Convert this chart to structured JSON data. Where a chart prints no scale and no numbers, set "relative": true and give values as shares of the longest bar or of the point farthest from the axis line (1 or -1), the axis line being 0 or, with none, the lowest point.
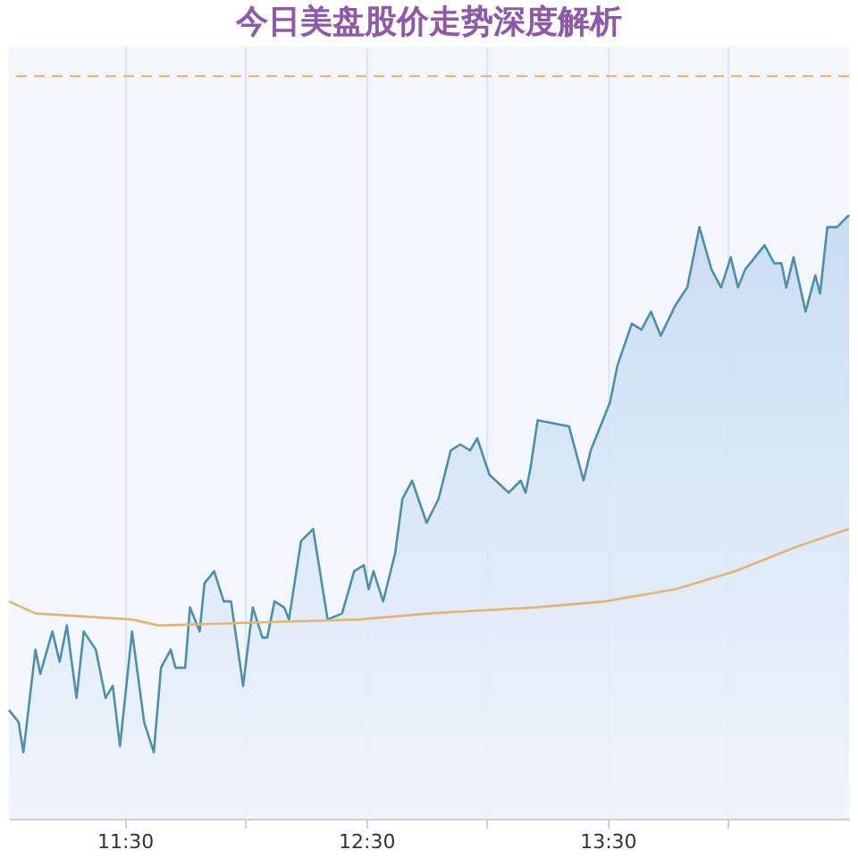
{
  "chart_data": {
    "type": "line",
    "title": "今日美盘股价走势深度解析",
    "relative": true,
    "x": [
      11.02,
      11.06,
      11.08,
      11.13,
      11.15,
      11.2,
      11.23,
      11.26,
      11.3,
      11.33,
      11.38,
      11.42,
      11.45,
      11.48,
      11.53,
      11.58,
      11.62,
      11.65,
      11.69,
      11.71,
      11.75,
      11.77,
      11.81,
      11.83,
      11.87,
      11.91,
      11.94,
      11.99,
      12.03,
      12.07,
      12.09,
      12.12,
      12.16,
      12.18,
      12.23,
      12.28,
      12.3,
      12.34,
      12.4,
      12.45,
      12.49,
      12.51,
      12.53,
      12.57,
      12.62,
      12.65,
      12.69,
      12.75,
      12.8,
      12.85,
      12.89,
      12.93,
      12.96,
      13.01,
      13.09,
      13.14,
      13.16,
      13.18,
      13.21,
      13.34,
      13.4,
      13.43,
      13.51,
      13.54,
      13.6,
      13.64,
      13.68,
      13.72,
      13.78,
      13.83,
      13.88,
      13.93,
      13.97,
      14.01,
      14.04,
      14.07,
      14.15,
      14.19,
      14.22,
      14.24,
      14.27,
      14.32,
      14.36,
      14.38,
      14.41,
      14.45,
      14.5
    ],
    "series": [
      {
        "type": "area",
        "color": "#4f8fa8",
        "values": [
          0.18,
          0.16,
          0.11,
          0.28,
          0.24,
          0.31,
          0.26,
          0.32,
          0.2,
          0.31,
          0.28,
          0.2,
          0.22,
          0.12,
          0.31,
          0.16,
          0.11,
          0.25,
          0.28,
          0.25,
          0.25,
          0.35,
          0.31,
          0.39,
          0.41,
          0.36,
          0.36,
          0.22,
          0.35,
          0.3,
          0.3,
          0.36,
          0.35,
          0.33,
          0.46,
          0.48,
          0.43,
          0.33,
          0.34,
          0.41,
          0.42,
          0.38,
          0.41,
          0.36,
          0.44,
          0.53,
          0.56,
          0.49,
          0.53,
          0.61,
          0.62,
          0.61,
          0.63,
          0.57,
          0.54,
          0.56,
          0.54,
          0.58,
          0.66,
          0.65,
          0.56,
          0.61,
          0.69,
          0.75,
          0.82,
          0.81,
          0.84,
          0.8,
          0.85,
          0.88,
          0.98,
          0.91,
          0.88,
          0.93,
          0.88,
          0.91,
          0.95,
          0.92,
          0.92,
          0.88,
          0.93,
          0.84,
          0.9,
          0.87,
          0.98,
          0.98,
          1.0
        ]
      },
      {
        "type": "line",
        "color": "#e0b47a",
        "x": [
          11.02,
          11.13,
          11.53,
          11.64,
          12.47,
          12.76,
          13.2,
          13.49,
          13.78,
          14.03,
          14.28,
          14.5
        ],
        "values": [
          0.36,
          0.34,
          0.33,
          0.32,
          0.33,
          0.34,
          0.35,
          0.36,
          0.38,
          0.41,
          0.45,
          0.48
        ]
      }
    ],
    "xlim": [
      11.02,
      14.5
    ],
    "xticks": [
      {
        "value": 11.5,
        "label": "11:30"
      },
      {
        "value": 12,
        "label": null
      },
      {
        "value": 12.5,
        "label": "12:30"
      },
      {
        "value": 13,
        "label": null
      },
      {
        "value": 13.5,
        "label": "13:30"
      },
      {
        "value": 14,
        "label": null
      }
    ],
    "ref_lines": [
      {
        "axis": "y",
        "value": 1.23,
        "color": "#e8b070",
        "line_style": "dashed"
      }
    ],
    "grid": true,
    "marker": "none",
    "line_style": "solid"
  }
}
